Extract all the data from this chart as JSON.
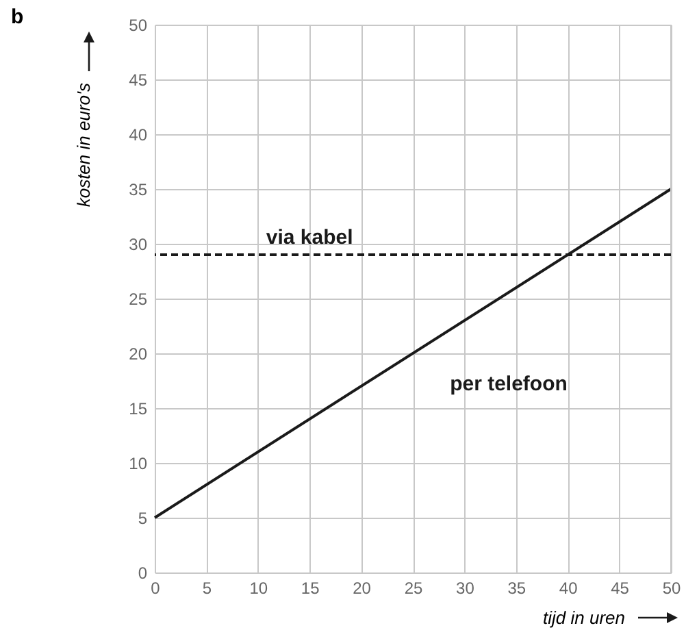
{
  "chart_data": {
    "type": "line",
    "xlabel": "tijd in uren",
    "ylabel": "kosten in euro's",
    "x": [
      0,
      50
    ],
    "series": [
      {
        "name": "per telefoon",
        "color": "#1a1a1a",
        "values": [
          5,
          35
        ]
      }
    ],
    "ref_lines": [
      {
        "axis": "y",
        "value": 29,
        "label": "via kabel",
        "color": "#1a1a1a",
        "line_style": "dashed"
      }
    ],
    "xlim": [
      0,
      50
    ],
    "xticks": [
      0,
      5,
      10,
      15,
      20,
      25,
      30,
      35,
      40,
      45,
      50
    ],
    "ylim": [
      0,
      50
    ],
    "yticks": [
      0,
      5,
      10,
      15,
      20,
      25,
      30,
      35,
      40,
      45,
      50
    ],
    "grid": true,
    "marker": "none",
    "line_style": "solid",
    "annotations": [
      "b"
    ]
  }
}
